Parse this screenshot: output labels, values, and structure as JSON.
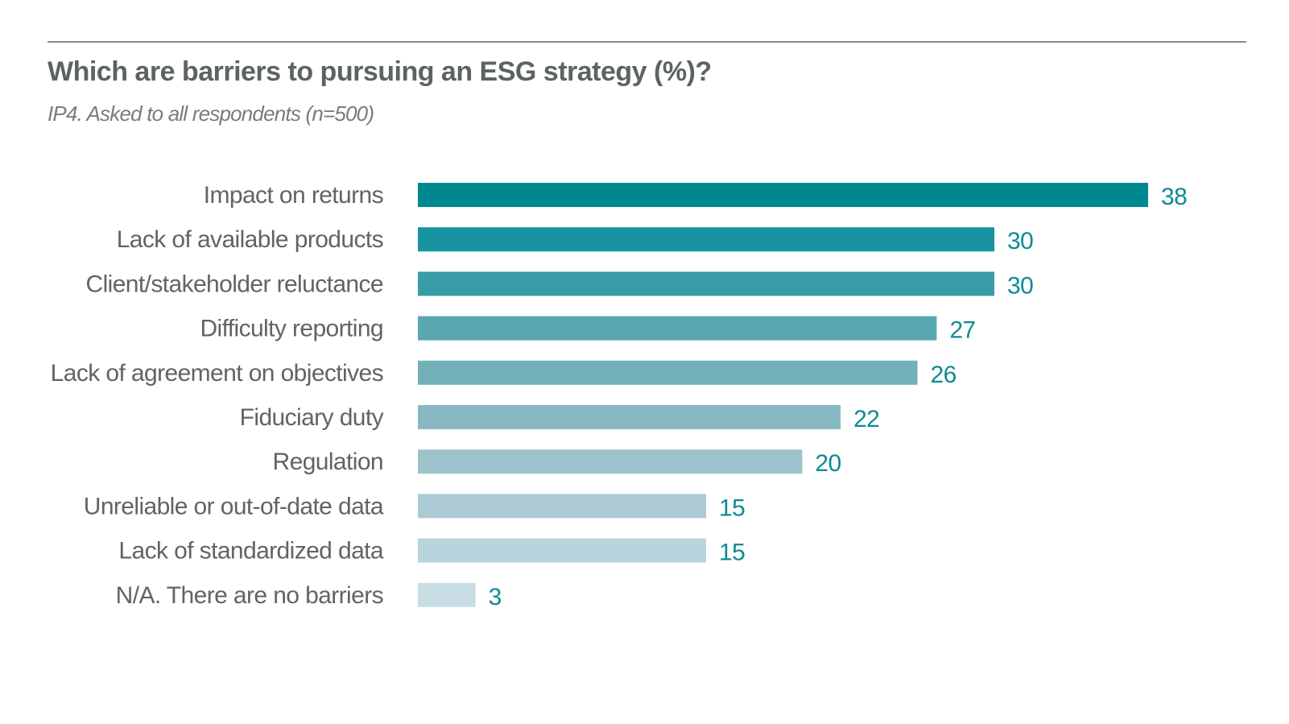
{
  "chart_data": {
    "type": "bar",
    "orientation": "horizontal",
    "title": "Which are barriers to pursuing an ESG strategy (%)?",
    "subtitle": "IP4. Asked to all respondents (n=500)",
    "categories": [
      "Impact on returns",
      "Lack of available products",
      "Client/stakeholder reluctance",
      "Difficulty reporting",
      "Lack of agreement on objectives",
      "Fiduciary duty",
      "Regulation",
      "Unreliable or out-of-date data",
      "Lack of standardized data",
      "N/A. There are no barriers"
    ],
    "values": [
      38,
      30,
      30,
      27,
      26,
      22,
      20,
      15,
      15,
      3
    ],
    "value_labels": [
      "38",
      "30",
      "30",
      "27",
      "26",
      "22",
      "20",
      "15",
      "15",
      "3"
    ],
    "xlim": [
      0,
      38
    ],
    "grid": false,
    "legend": "none",
    "bar_colors": [
      "#008891",
      "#1993a0",
      "#3a9ca7",
      "#5aa7b1",
      "#72b0ba",
      "#88b9c3",
      "#9cc3cc",
      "#abcad3",
      "#b8d4dc",
      "#c8dde3"
    ],
    "value_label_color": "#0e8a94",
    "category_label_color": "#636363"
  }
}
